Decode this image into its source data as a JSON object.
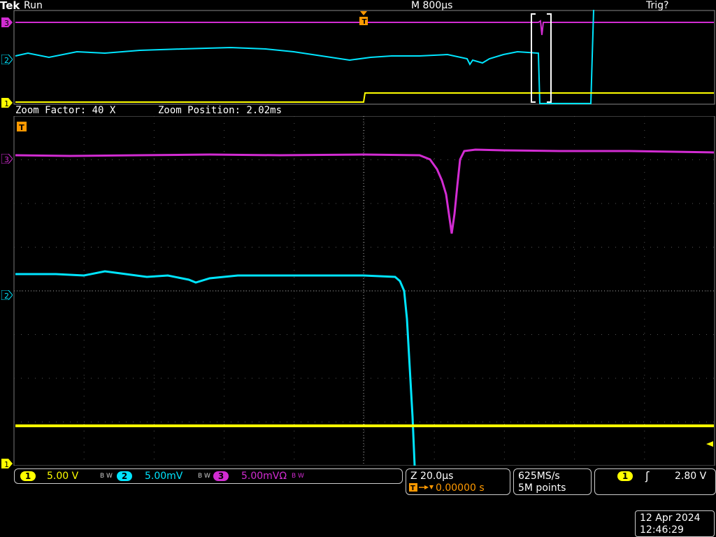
{
  "header": {
    "brand": "Tek",
    "run_state": "Run",
    "main_timebase": "M 800µs",
    "trigger_state": "Trig?"
  },
  "zoom": {
    "factor_label": "Zoom Factor: 40 X",
    "position_label": "Zoom Position: 2.02ms"
  },
  "channels": [
    {
      "id": "1",
      "scale": "5.00 V",
      "color": "#ffff00"
    },
    {
      "id": "2",
      "scale": "5.00mV",
      "color": "#00e5ff"
    },
    {
      "id": "3",
      "scale": "5.00mVΩ",
      "color": "#d22cd2"
    }
  ],
  "bw_limit_label": "B W",
  "trigger_marker": "T",
  "horizontal": {
    "zoom_scale": "Z 20.0µs",
    "trigger_offset": "0.00000 s"
  },
  "acquisition": {
    "sample_rate": "625MS/s",
    "record_length": "5M points"
  },
  "trigger": {
    "source": "1",
    "slope_symbol": "ʃ",
    "level": "2.80 V"
  },
  "datetime": {
    "date": "12 Apr  2024",
    "time": "12:46:29"
  }
}
